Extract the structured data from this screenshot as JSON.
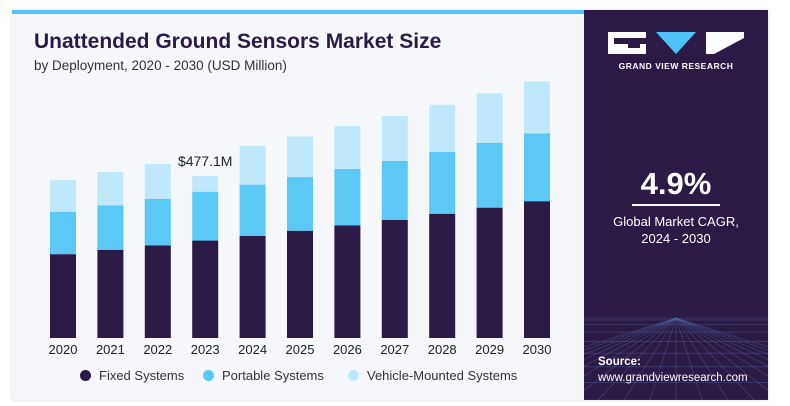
{
  "header": {
    "title": "Unattended Ground Sensors Market Size",
    "subtitle": "by Deployment, 2020 - 2030 (USD Million)"
  },
  "chart_data": {
    "type": "bar",
    "stacked": true,
    "categories": [
      "2020",
      "2021",
      "2022",
      "2023",
      "2024",
      "2025",
      "2026",
      "2027",
      "2028",
      "2029",
      "2030"
    ],
    "series": [
      {
        "name": "Fixed Systems",
        "color": "#2a1a45",
        "values": [
          247,
          260,
          273,
          287,
          301,
          316,
          332,
          348,
          366,
          384,
          403
        ]
      },
      {
        "name": "Portable Systems",
        "color": "#5bc8f5",
        "values": [
          125,
          131,
          137,
          144,
          151,
          158,
          166,
          174,
          182,
          191,
          200
        ]
      },
      {
        "name": "Vehicle-Mounted Systems",
        "color": "#bfe9fb",
        "values": [
          94,
          98,
          103,
          46,
          114,
          120,
          126,
          132,
          139,
          146,
          153
        ]
      }
    ],
    "annotation": {
      "category": "2023",
      "text": "$477.1M"
    },
    "ylim": [
      0,
      760
    ],
    "grid": false,
    "legend_position": "bottom"
  },
  "legend": {
    "items": [
      {
        "label": "Fixed Systems",
        "color": "#2a1a45"
      },
      {
        "label": "Portable Systems",
        "color": "#5bc8f5"
      },
      {
        "label": "Vehicle-Mounted Systems",
        "color": "#bfe9fb"
      }
    ]
  },
  "side_panel": {
    "brand": "GRAND VIEW RESEARCH",
    "cagr_value": "4.9%",
    "cagr_label_line1": "Global Market CAGR,",
    "cagr_label_line2": "2024 - 2030",
    "source_label": "Source:",
    "source_url": "www.grandviewresearch.com"
  },
  "colors": {
    "panel": "#2a1a45",
    "accent": "#4fc3f7",
    "title": "#2b1a47"
  },
  "icons": {
    "logo": "grand-view-research-logo-icon"
  }
}
